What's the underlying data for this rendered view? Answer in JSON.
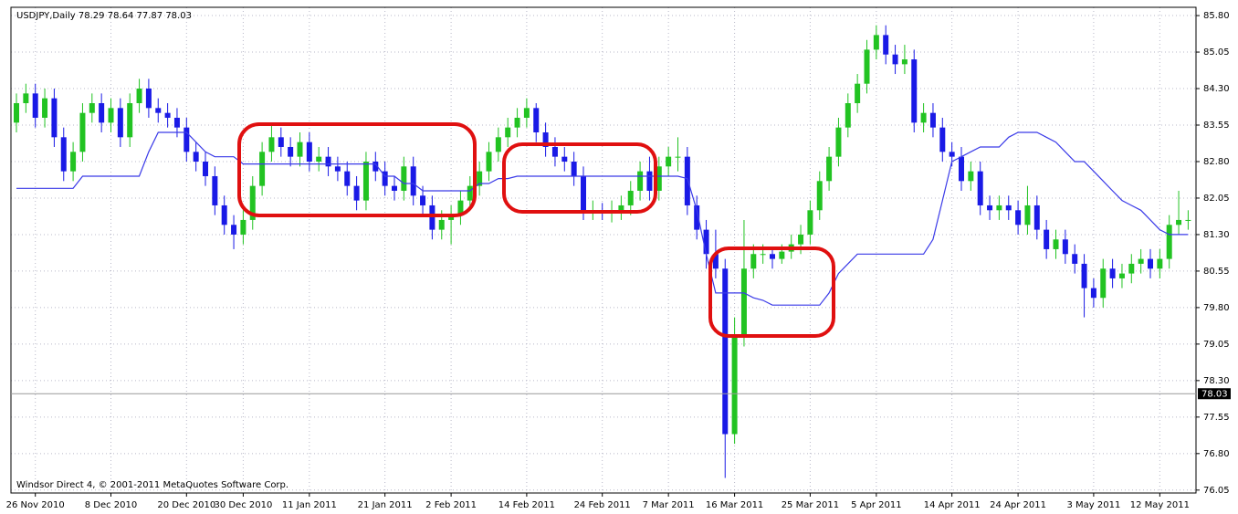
{
  "chart_data": {
    "type": "candlestick",
    "title": "USDJPY,Daily  78.29 78.64 77.87 78.03",
    "copyright": "Windsor Direct 4, © 2001-2011 MetaQuotes Software Corp.",
    "categories": [
      null,
      null,
      "26 Nov 2010",
      null,
      null,
      null,
      null,
      null,
      null,
      null,
      "8 Dec 2010",
      null,
      null,
      null,
      null,
      null,
      null,
      null,
      "20 Dec 2010",
      null,
      null,
      null,
      null,
      null,
      "30 Dec 2010",
      null,
      null,
      null,
      null,
      null,
      null,
      "11 Jan 2011",
      null,
      null,
      null,
      null,
      null,
      null,
      null,
      "21 Jan 2011",
      null,
      null,
      null,
      null,
      null,
      null,
      "2 Feb 2011",
      null,
      null,
      null,
      null,
      null,
      null,
      null,
      "14 Feb 2011",
      null,
      null,
      null,
      null,
      null,
      null,
      null,
      "24 Feb 2011",
      null,
      null,
      null,
      null,
      null,
      null,
      "7 Mar 2011",
      null,
      null,
      null,
      null,
      null,
      null,
      "16 Mar 2011",
      null,
      null,
      null,
      null,
      null,
      null,
      null,
      "25 Mar 2011",
      null,
      null,
      null,
      null,
      null,
      null,
      "5 Apr 2011",
      null,
      null,
      null,
      null,
      null,
      null,
      null,
      "14 Apr 2011",
      null,
      null,
      null,
      null,
      null,
      null,
      "24 Apr 2011",
      null,
      null,
      null,
      null,
      null,
      null,
      null,
      "3 May 2011",
      null,
      null,
      null,
      null,
      null,
      null,
      "12 May 2011",
      null,
      null,
      null
    ],
    "open": [
      83.6,
      84.0,
      84.2,
      83.7,
      84.1,
      83.3,
      82.6,
      83.0,
      83.8,
      84.0,
      83.6,
      83.9,
      83.3,
      84.0,
      84.3,
      83.9,
      83.8,
      83.7,
      83.5,
      83.0,
      82.8,
      82.5,
      81.9,
      81.5,
      81.3,
      81.6,
      82.3,
      83.0,
      83.3,
      83.1,
      82.9,
      83.2,
      82.8,
      82.9,
      82.7,
      82.6,
      82.3,
      82.0,
      82.8,
      82.6,
      82.3,
      82.2,
      82.7,
      82.1,
      81.9,
      81.4,
      81.6,
      81.7,
      82.0,
      82.3,
      82.6,
      83.0,
      83.3,
      83.5,
      83.7,
      83.9,
      83.4,
      83.1,
      82.9,
      82.8,
      82.5,
      81.8,
      81.8,
      81.75,
      81.8,
      81.9,
      82.2,
      82.6,
      82.2,
      82.7,
      82.9,
      82.9,
      81.9,
      81.4,
      80.9,
      80.6,
      77.2,
      79.2,
      80.6,
      80.9,
      80.9,
      80.8,
      80.95,
      81.1,
      81.3,
      81.8,
      82.4,
      82.9,
      83.5,
      84.0,
      84.4,
      85.1,
      85.4,
      85.0,
      84.8,
      84.9,
      83.6,
      83.8,
      83.5,
      83.0,
      82.9,
      82.4,
      82.6,
      81.9,
      81.8,
      81.9,
      81.8,
      81.5,
      81.9,
      81.4,
      81.0,
      81.2,
      80.9,
      80.7,
      80.2,
      80.0,
      80.6,
      80.4,
      80.5,
      80.7,
      80.8,
      80.6,
      80.8,
      81.5,
      81.6
    ],
    "high": [
      84.2,
      84.4,
      84.4,
      84.3,
      84.3,
      83.5,
      83.2,
      84.0,
      84.2,
      84.2,
      84.1,
      84.1,
      84.2,
      84.5,
      84.5,
      84.1,
      84.0,
      83.9,
      83.7,
      83.2,
      83.0,
      82.7,
      82.1,
      81.7,
      81.8,
      82.5,
      83.2,
      83.6,
      83.5,
      83.3,
      83.4,
      83.4,
      83.1,
      83.1,
      82.9,
      82.8,
      82.5,
      83.0,
      83.0,
      82.8,
      82.5,
      82.9,
      82.9,
      82.3,
      82.1,
      81.8,
      81.9,
      82.2,
      82.5,
      82.8,
      83.2,
      83.5,
      83.7,
      83.9,
      84.1,
      84.0,
      83.6,
      83.3,
      83.1,
      83.0,
      82.7,
      82.0,
      81.95,
      82.0,
      82.1,
      82.4,
      82.8,
      82.9,
      82.9,
      83.1,
      83.3,
      83.1,
      82.1,
      81.6,
      81.4,
      80.8,
      79.6,
      81.6,
      81.1,
      81.1,
      81.0,
      81.1,
      81.3,
      81.5,
      82.0,
      82.6,
      83.1,
      83.7,
      84.2,
      84.6,
      85.3,
      85.6,
      85.6,
      85.2,
      85.2,
      85.1,
      84.0,
      84.0,
      83.7,
      83.2,
      83.1,
      82.8,
      82.8,
      82.1,
      82.1,
      82.1,
      82.0,
      82.3,
      82.1,
      81.6,
      81.4,
      81.4,
      81.1,
      80.9,
      80.4,
      80.8,
      80.8,
      80.7,
      80.9,
      81.0,
      81.0,
      81.0,
      81.7,
      82.2,
      81.8
    ],
    "low": [
      83.4,
      83.8,
      83.5,
      83.5,
      83.1,
      82.4,
      82.4,
      82.8,
      83.6,
      83.4,
      83.4,
      83.1,
      83.1,
      83.8,
      83.7,
      83.6,
      83.5,
      83.3,
      82.8,
      82.6,
      82.3,
      81.7,
      81.3,
      81.0,
      81.1,
      81.4,
      82.1,
      82.8,
      82.9,
      82.7,
      82.7,
      82.6,
      82.6,
      82.5,
      82.4,
      82.1,
      81.8,
      81.8,
      82.4,
      82.1,
      82.0,
      82.0,
      81.9,
      81.7,
      81.2,
      81.2,
      81.1,
      81.5,
      81.8,
      82.1,
      82.4,
      82.8,
      83.1,
      83.3,
      83.5,
      83.2,
      82.9,
      82.7,
      82.6,
      82.3,
      81.6,
      81.6,
      81.6,
      81.55,
      81.6,
      81.7,
      82.0,
      82.0,
      82.0,
      82.5,
      82.6,
      81.7,
      81.2,
      80.6,
      80.4,
      76.3,
      77.0,
      79.0,
      80.4,
      80.7,
      80.6,
      80.7,
      80.8,
      80.9,
      81.1,
      81.6,
      82.2,
      82.7,
      83.3,
      83.8,
      84.2,
      84.9,
      84.8,
      84.6,
      84.6,
      83.4,
      83.4,
      83.3,
      82.8,
      82.7,
      82.2,
      82.2,
      81.7,
      81.6,
      81.6,
      81.6,
      81.3,
      81.3,
      81.2,
      80.8,
      80.8,
      80.7,
      80.5,
      79.6,
      79.8,
      79.8,
      80.2,
      80.2,
      80.3,
      80.5,
      80.4,
      80.4,
      80.6,
      81.3,
      81.4
    ],
    "close": [
      84.0,
      84.2,
      83.7,
      84.1,
      83.3,
      82.6,
      83.0,
      83.8,
      84.0,
      83.6,
      83.9,
      83.3,
      84.0,
      84.3,
      83.9,
      83.8,
      83.7,
      83.5,
      83.0,
      82.8,
      82.5,
      81.9,
      81.5,
      81.3,
      81.6,
      82.3,
      83.0,
      83.3,
      83.1,
      82.9,
      83.2,
      82.8,
      82.9,
      82.7,
      82.6,
      82.3,
      82.0,
      82.8,
      82.6,
      82.3,
      82.2,
      82.7,
      82.1,
      81.9,
      81.4,
      81.6,
      81.7,
      82.0,
      82.3,
      82.6,
      83.0,
      83.3,
      83.5,
      83.7,
      83.9,
      83.4,
      83.1,
      82.9,
      82.8,
      82.5,
      81.8,
      81.8,
      81.75,
      81.8,
      81.9,
      82.2,
      82.6,
      82.2,
      82.7,
      82.9,
      82.9,
      81.9,
      81.4,
      80.9,
      80.6,
      77.2,
      79.2,
      80.6,
      80.9,
      80.9,
      80.8,
      80.95,
      81.1,
      81.3,
      81.8,
      82.4,
      82.9,
      83.5,
      84.0,
      84.4,
      85.1,
      85.4,
      85.0,
      84.8,
      84.9,
      83.6,
      83.8,
      83.5,
      83.0,
      82.9,
      82.4,
      82.6,
      81.9,
      81.8,
      81.9,
      81.8,
      81.5,
      81.9,
      81.4,
      81.0,
      81.2,
      80.9,
      80.7,
      80.2,
      80.0,
      80.6,
      80.4,
      80.5,
      80.7,
      80.8,
      80.6,
      80.8,
      81.5,
      81.6,
      81.6
    ],
    "up_color": "#22c322",
    "down_color": "#1a1ae6",
    "line": {
      "color": "#3a3ae8",
      "values": [
        82.25,
        82.25,
        82.25,
        82.25,
        82.25,
        82.25,
        82.25,
        82.5,
        82.5,
        82.5,
        82.5,
        82.5,
        82.5,
        82.5,
        83.0,
        83.4,
        83.4,
        83.4,
        83.4,
        83.2,
        83.0,
        82.9,
        82.9,
        82.9,
        82.75,
        82.75,
        82.75,
        82.75,
        82.75,
        82.75,
        82.75,
        82.75,
        82.75,
        82.75,
        82.75,
        82.75,
        82.75,
        82.75,
        82.75,
        82.5,
        82.5,
        82.35,
        82.35,
        82.2,
        82.2,
        82.2,
        82.2,
        82.2,
        82.2,
        82.35,
        82.35,
        82.45,
        82.45,
        82.5,
        82.5,
        82.5,
        82.5,
        82.5,
        82.5,
        82.5,
        82.5,
        82.5,
        82.5,
        82.5,
        82.5,
        82.5,
        82.5,
        82.5,
        82.5,
        82.5,
        82.5,
        82.45,
        81.8,
        80.9,
        80.1,
        80.1,
        80.1,
        80.1,
        80.0,
        79.95,
        79.85,
        79.85,
        79.85,
        79.85,
        79.85,
        79.85,
        80.1,
        80.5,
        80.7,
        80.9,
        80.9,
        80.9,
        80.9,
        80.9,
        80.9,
        80.9,
        80.9,
        81.2,
        82.0,
        82.8,
        82.9,
        83.0,
        83.1,
        83.1,
        83.1,
        83.3,
        83.4,
        83.4,
        83.4,
        83.3,
        83.2,
        83.0,
        82.8,
        82.8,
        82.6,
        82.4,
        82.2,
        82.0,
        81.9,
        81.8,
        81.6,
        81.4,
        81.3,
        81.3,
        81.3
      ]
    },
    "last_price": 78.03,
    "ylim": [
      75.99,
      85.97
    ],
    "yticks": [
      {
        "value": 85.8,
        "label": "85.80"
      },
      85.05,
      {
        "value": 84.3,
        "label": "84.30"
      },
      83.55,
      {
        "value": 82.8,
        "label": "82.80"
      },
      82.05,
      {
        "value": 81.3,
        "label": "81.30"
      },
      80.55,
      {
        "value": 79.8,
        "label": "79.80"
      },
      79.05,
      {
        "value": 78.3,
        "label": "78.30"
      },
      77.55,
      {
        "value": 76.8,
        "label": "76.80"
      },
      76.05
    ],
    "grid": true
  }
}
